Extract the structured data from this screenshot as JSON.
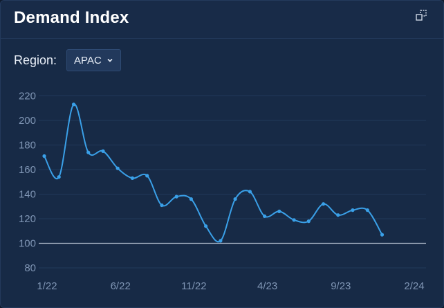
{
  "header": {
    "title": "Demand Index",
    "expand_icon": "expand-icon"
  },
  "filter": {
    "label": "Region:",
    "value": "APAC"
  },
  "colors": {
    "line": "#3aa0e8",
    "grid": "#22395a",
    "axis": "#cfd8e6",
    "tick": "#7f95b4"
  },
  "chart_data": {
    "type": "line",
    "title": "Demand Index",
    "xlabel": "",
    "ylabel": "",
    "x_ticks": [
      "1/22",
      "6/22",
      "11/22",
      "4/23",
      "9/23",
      "2/24"
    ],
    "y_ticks": [
      80,
      100,
      120,
      140,
      160,
      180,
      200,
      220
    ],
    "ylim": [
      75,
      225
    ],
    "xlim": [
      "2022-01",
      "2024-02"
    ],
    "grid": true,
    "legend": "none",
    "series": [
      {
        "x": [
          "2022-01",
          "2022-02",
          "2022-03",
          "2022-04",
          "2022-05",
          "2022-06",
          "2022-07",
          "2022-08",
          "2022-09",
          "2022-10",
          "2022-11",
          "2022-12",
          "2023-01",
          "2023-02",
          "2023-03",
          "2023-04",
          "2023-05",
          "2023-06",
          "2023-07",
          "2023-08",
          "2023-09",
          "2023-10",
          "2023-11",
          "2023-12"
        ],
        "values": [
          171,
          154,
          213,
          174,
          175,
          161,
          153,
          155,
          131,
          138,
          136,
          114,
          102,
          136,
          142,
          122,
          126,
          119,
          118,
          132,
          123,
          127,
          127,
          107
        ]
      }
    ]
  }
}
